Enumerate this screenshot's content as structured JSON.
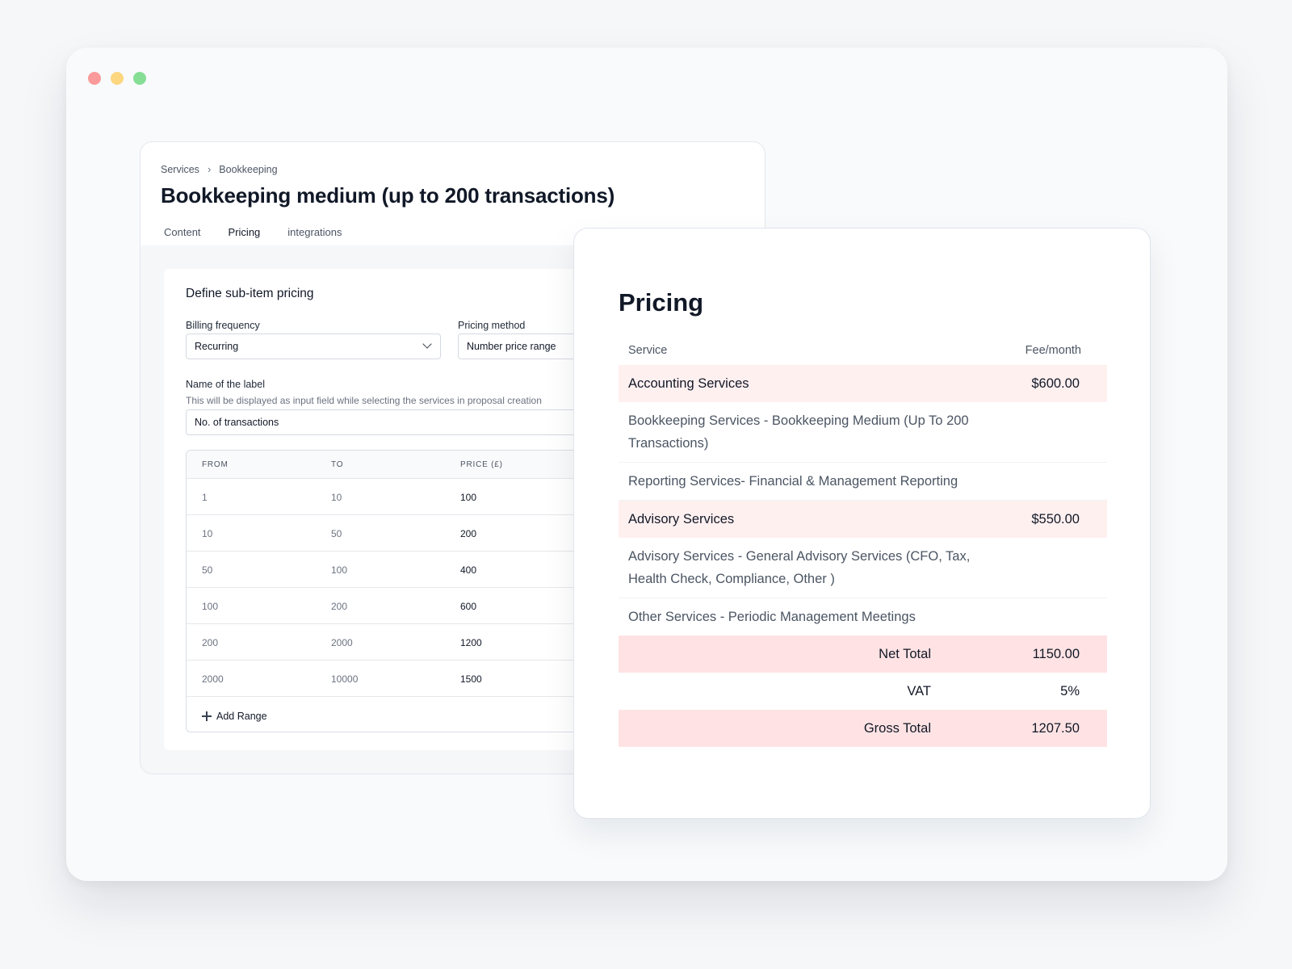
{
  "editor": {
    "breadcrumb": [
      "Services",
      "Bookkeeping"
    ],
    "title": "Bookkeeping medium (up to 200 transactions)",
    "tabs": [
      "Content",
      "Pricing",
      "integrations"
    ],
    "active_tab": "Pricing",
    "panel_title": "Define sub-item pricing",
    "billing_label": "Billing frequency",
    "billing_value": "Recurring",
    "method_label": "Pricing method",
    "method_value": "Number price range",
    "name_label": "Name of the label",
    "name_hint": "This will be displayed as input field while selecting the services in proposal creation",
    "name_value": "No. of transactions",
    "table": {
      "headers": [
        "FROM",
        "TO",
        "PRICE (£)"
      ],
      "rows": [
        [
          "1",
          "10",
          "100"
        ],
        [
          "10",
          "50",
          "200"
        ],
        [
          "50",
          "100",
          "400"
        ],
        [
          "100",
          "200",
          "600"
        ],
        [
          "200",
          "2000",
          "1200"
        ],
        [
          "2000",
          "10000",
          "1500"
        ]
      ],
      "add_label": "Add Range"
    }
  },
  "summary": {
    "title": "Pricing",
    "col_service": "Service",
    "col_fee": "Fee/month",
    "sections": [
      {
        "name": "Accounting Services",
        "fee": "$600.00",
        "items": [
          "Bookkeeping Services - Bookkeeping Medium (Up To 200 Transactions)",
          "Reporting Services- Financial & Management Reporting"
        ]
      },
      {
        "name": "Advisory Services",
        "fee": "$550.00",
        "items": [
          "Advisory Services - General Advisory Services (CFO, Tax, Health Check, Compliance, Other )",
          "Other Services - Periodic Management Meetings"
        ]
      }
    ],
    "net_label": "Net Total",
    "net_value": "1150.00",
    "vat_label": "VAT",
    "vat_value": "5%",
    "gross_label": "Gross Total",
    "gross_value": "1207.50"
  },
  "colors": {
    "category_bg": "#fff0f0",
    "total_bg": "#ffe3e4",
    "dot_red": "#fb9a9a",
    "dot_yellow": "#fcd77f",
    "dot_green": "#86de95"
  }
}
